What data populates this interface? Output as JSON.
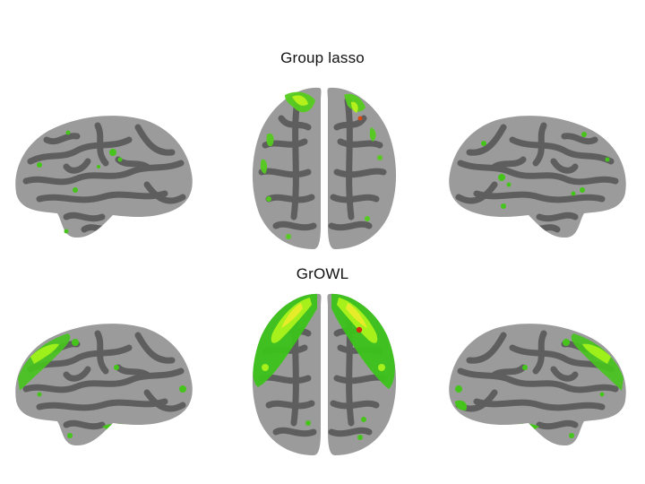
{
  "panels": [
    {
      "title": "Group lasso",
      "views": [
        "left-lateral",
        "dorsal",
        "right-lateral"
      ]
    },
    {
      "title": "GrOWL",
      "views": [
        "left-lateral",
        "dorsal",
        "right-lateral"
      ]
    }
  ],
  "colors": {
    "background": "#ffffff",
    "cortex_gyri": "#9a9a9a",
    "cortex_sulci": "#5e5e5e",
    "activation_low": "#3cc31a",
    "activation_mid": "#9ef01a",
    "activation_high": "#e8ec2a",
    "activation_peak": "#d42a10"
  }
}
